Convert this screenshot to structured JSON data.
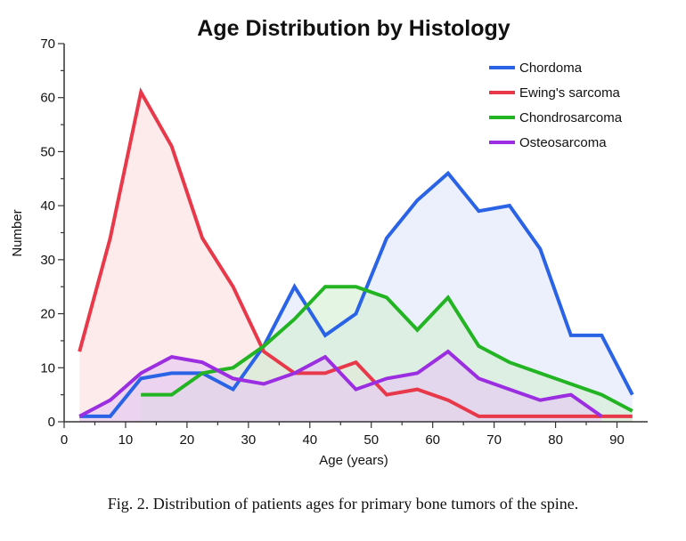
{
  "chart_data": {
    "type": "area",
    "title": "Age Distribution by Histology",
    "xlabel": "Age (years)",
    "ylabel": "Number",
    "xlim": [
      0,
      95
    ],
    "ylim": [
      0,
      70
    ],
    "xticks": [
      0,
      10,
      20,
      30,
      40,
      50,
      60,
      70,
      80,
      90
    ],
    "yticks": [
      0,
      10,
      20,
      30,
      40,
      50,
      60,
      70
    ],
    "grid": false,
    "legend_position": "top-right",
    "series": [
      {
        "name": "Chordoma",
        "color": "#2a63e6",
        "fill": "#dfe6fb",
        "x": [
          2.5,
          7.5,
          12.5,
          17.5,
          22.5,
          27.5,
          32.5,
          37.5,
          42.5,
          47.5,
          52.5,
          57.5,
          62.5,
          67.5,
          72.5,
          77.5,
          82.5,
          87.5,
          92.5
        ],
        "y": [
          1,
          1,
          8,
          9,
          9,
          6,
          14,
          25,
          16,
          20,
          34,
          41,
          46,
          39,
          40,
          32,
          16,
          16,
          5
        ]
      },
      {
        "name": "Ewing's sarcoma",
        "color": "#e8394a",
        "fill": "#fbdde0",
        "x": [
          2.5,
          7.5,
          12.5,
          17.5,
          22.5,
          27.5,
          32.5,
          37.5,
          42.5,
          47.5,
          52.5,
          57.5,
          62.5,
          67.5,
          72.5,
          77.5,
          82.5,
          87.5,
          92.5
        ],
        "y": [
          13,
          34,
          61,
          51,
          34,
          25,
          13,
          9,
          9,
          11,
          5,
          6,
          4,
          1,
          1,
          1,
          1,
          1,
          1
        ]
      },
      {
        "name": "Chondrosarcoma",
        "color": "#22b422",
        "fill": "#d3efd0",
        "x": [
          12.5,
          17.5,
          22.5,
          27.5,
          32.5,
          37.5,
          42.5,
          47.5,
          52.5,
          57.5,
          62.5,
          67.5,
          72.5,
          77.5,
          82.5,
          87.5,
          92.5
        ],
        "y": [
          5,
          5,
          9,
          10,
          14,
          19,
          25,
          25,
          23,
          17,
          23,
          14,
          11,
          9,
          7,
          5,
          2
        ]
      },
      {
        "name": "Osteosarcoma",
        "color": "#9b2ee0",
        "fill": "#e6c6f3",
        "x": [
          2.5,
          7.5,
          12.5,
          17.5,
          22.5,
          27.5,
          32.5,
          37.5,
          42.5,
          47.5,
          52.5,
          57.5,
          62.5,
          67.5,
          72.5,
          77.5,
          82.5,
          87.5
        ],
        "y": [
          1,
          4,
          9,
          12,
          11,
          8,
          7,
          9,
          12,
          6,
          8,
          9,
          13,
          8,
          6,
          4,
          5,
          1
        ]
      }
    ]
  },
  "caption": "Fig.  2.  Distribution of patients ages for primary bone tumors of the spine."
}
